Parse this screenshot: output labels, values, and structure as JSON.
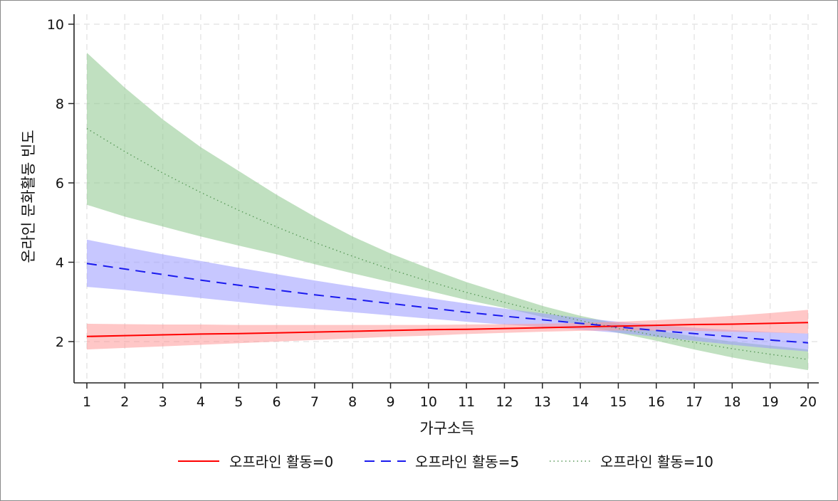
{
  "chart_data": {
    "type": "line",
    "title": "",
    "xlabel": "가구소득",
    "ylabel": "온라인 문화활동 빈도",
    "x": [
      1,
      2,
      3,
      4,
      5,
      6,
      7,
      8,
      9,
      10,
      11,
      12,
      13,
      14,
      15,
      16,
      17,
      18,
      19,
      20
    ],
    "x_ticks": [
      "1",
      "2",
      "3",
      "4",
      "5",
      "6",
      "7",
      "8",
      "9",
      "10",
      "11",
      "12",
      "13",
      "14",
      "15",
      "16",
      "17",
      "18",
      "19",
      "20"
    ],
    "y_ticks": [
      "2",
      "4",
      "6",
      "8",
      "10"
    ],
    "xlim": [
      1,
      20
    ],
    "ylim": [
      0.96,
      10.25
    ],
    "grid": true,
    "legend_position": "bottom",
    "series": [
      {
        "name": "오프라인 활동=0",
        "line_style": "solid",
        "color": "#ff0000",
        "band_color": "#ff9999",
        "values": [
          2.13,
          2.15,
          2.17,
          2.19,
          2.2,
          2.22,
          2.24,
          2.26,
          2.28,
          2.3,
          2.31,
          2.33,
          2.35,
          2.37,
          2.39,
          2.41,
          2.43,
          2.44,
          2.46,
          2.48
        ],
        "ci_upper": [
          2.45,
          2.44,
          2.43,
          2.43,
          2.42,
          2.42,
          2.42,
          2.42,
          2.42,
          2.42,
          2.43,
          2.44,
          2.45,
          2.47,
          2.5,
          2.54,
          2.59,
          2.65,
          2.72,
          2.8
        ],
        "ci_lower": [
          1.8,
          1.84,
          1.88,
          1.92,
          1.96,
          2.0,
          2.04,
          2.08,
          2.12,
          2.15,
          2.19,
          2.22,
          2.25,
          2.27,
          2.28,
          2.28,
          2.27,
          2.25,
          2.23,
          2.2
        ]
      },
      {
        "name": "오프라인 활동=5",
        "line_style": "dashed",
        "color": "#1a1aee",
        "band_color": "#9999ff",
        "values": [
          3.97,
          3.83,
          3.69,
          3.55,
          3.42,
          3.3,
          3.18,
          3.07,
          2.96,
          2.85,
          2.74,
          2.64,
          2.55,
          2.46,
          2.37,
          2.28,
          2.2,
          2.12,
          2.04,
          1.97
        ],
        "ci_upper": [
          4.57,
          4.38,
          4.2,
          4.03,
          3.86,
          3.7,
          3.54,
          3.39,
          3.24,
          3.1,
          2.96,
          2.83,
          2.71,
          2.6,
          2.5,
          2.42,
          2.35,
          2.29,
          2.24,
          2.2
        ],
        "ci_lower": [
          3.38,
          3.3,
          3.2,
          3.1,
          3.0,
          2.9,
          2.82,
          2.74,
          2.66,
          2.58,
          2.5,
          2.43,
          2.37,
          2.3,
          2.22,
          2.12,
          2.02,
          1.92,
          1.83,
          1.75
        ]
      },
      {
        "name": "오프라인 활동=10",
        "line_style": "dotted",
        "color": "#5a9a5a",
        "band_color": "#8cc68c",
        "values": [
          7.37,
          6.79,
          6.25,
          5.76,
          5.31,
          4.89,
          4.5,
          4.15,
          3.82,
          3.52,
          3.24,
          2.99,
          2.75,
          2.53,
          2.33,
          2.15,
          1.98,
          1.82,
          1.68,
          1.55
        ],
        "ci_upper": [
          9.28,
          8.4,
          7.6,
          6.9,
          6.3,
          5.7,
          5.15,
          4.65,
          4.22,
          3.85,
          3.5,
          3.2,
          2.9,
          2.65,
          2.45,
          2.28,
          2.13,
          2.0,
          1.9,
          1.8
        ],
        "ci_lower": [
          5.45,
          5.15,
          4.9,
          4.65,
          4.42,
          4.2,
          3.95,
          3.72,
          3.5,
          3.28,
          3.05,
          2.85,
          2.62,
          2.42,
          2.22,
          2.02,
          1.8,
          1.6,
          1.43,
          1.28
        ]
      }
    ]
  }
}
